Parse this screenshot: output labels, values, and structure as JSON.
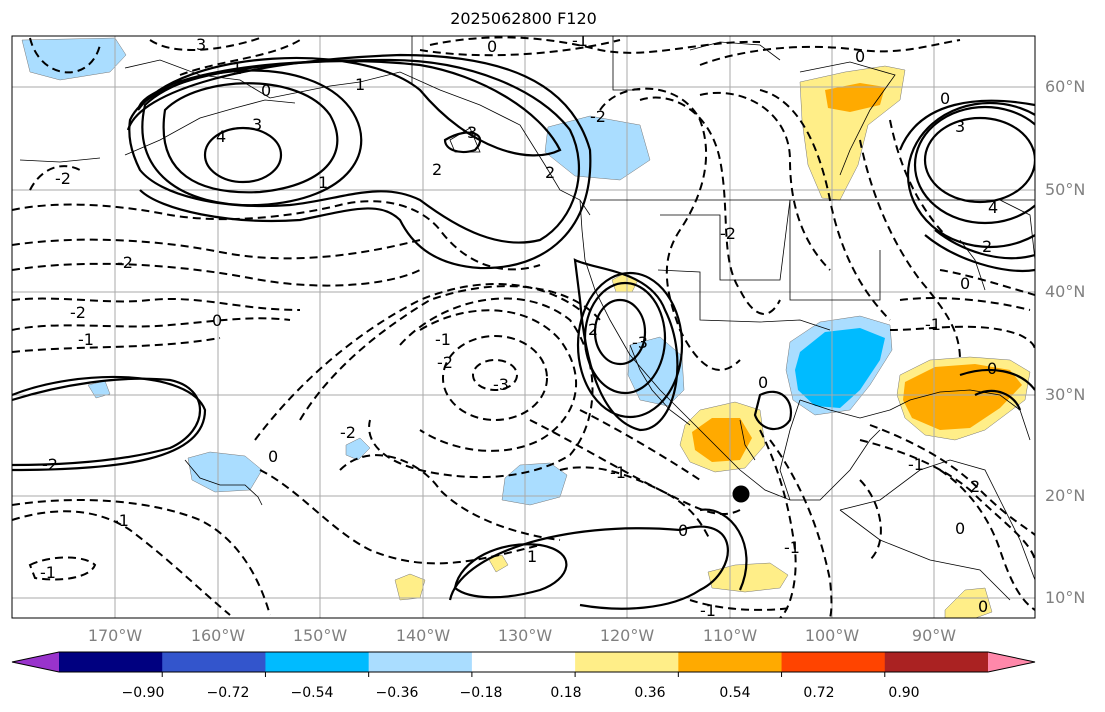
{
  "title": "2025062800 F120",
  "lat_labels": [
    "60°N",
    "50°N",
    "40°N",
    "30°N",
    "20°N",
    "10°N"
  ],
  "lon_labels": [
    "170°W",
    "160°W",
    "150°W",
    "140°W",
    "130°W",
    "120°W",
    "110°W",
    "100°W",
    "90°W"
  ],
  "contour_labels": [
    "3",
    "1",
    "0",
    "0",
    "1",
    "-1",
    "0",
    "3",
    "4",
    "1",
    "3",
    "2",
    "2",
    "-2",
    "-2",
    "-2",
    "-1",
    "0",
    "-1",
    "-2",
    "-3",
    "2",
    "-3",
    "-2",
    "-2",
    "-1",
    "-2",
    "-1",
    "-1",
    "0",
    "0",
    "0",
    "-1",
    "1",
    "-1",
    "0",
    "0",
    "-1",
    "0",
    "3",
    "4",
    "2",
    "-1",
    "0",
    "2",
    "-2",
    "0"
  ],
  "colorbar": {
    "ticks": [
      "−0.90",
      "−0.72",
      "−0.54",
      "−0.36",
      "−0.18",
      "0.18",
      "0.36",
      "0.54",
      "0.72",
      "0.90"
    ],
    "colors": [
      "#9933cc",
      "#000080",
      "#3355cc",
      "#00bbff",
      "#aaddff",
      "#ffffff",
      "#ffee88",
      "#ffaa00",
      "#ff4400",
      "#aa2222",
      "#ff88aa"
    ]
  },
  "marker": "black-dot"
}
